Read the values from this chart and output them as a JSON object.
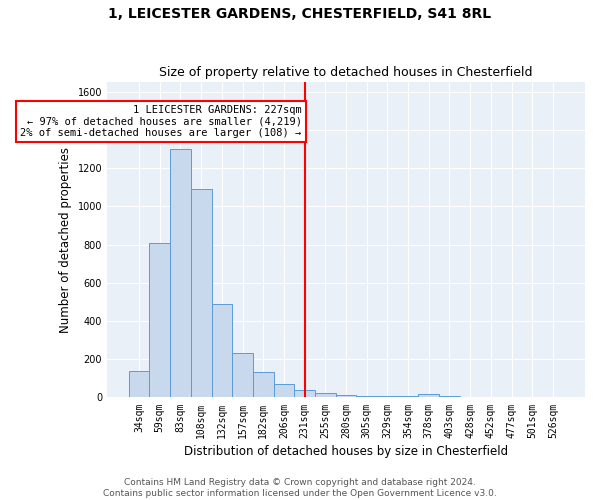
{
  "title": "1, LEICESTER GARDENS, CHESTERFIELD, S41 8RL",
  "subtitle": "Size of property relative to detached houses in Chesterfield",
  "xlabel": "Distribution of detached houses by size in Chesterfield",
  "ylabel": "Number of detached properties",
  "bar_color": "#c8d9ed",
  "bar_edge_color": "#5b9bd5",
  "background_color": "#eaf0f8",
  "grid_color": "white",
  "categories": [
    "34sqm",
    "59sqm",
    "83sqm",
    "108sqm",
    "132sqm",
    "157sqm",
    "182sqm",
    "206sqm",
    "231sqm",
    "255sqm",
    "280sqm",
    "305sqm",
    "329sqm",
    "354sqm",
    "378sqm",
    "403sqm",
    "428sqm",
    "452sqm",
    "477sqm",
    "501sqm",
    "526sqm"
  ],
  "values": [
    140,
    810,
    1300,
    1090,
    490,
    235,
    133,
    72,
    38,
    22,
    13,
    10,
    9,
    8,
    20,
    5,
    4,
    0,
    0,
    0,
    0
  ],
  "vline_bin_index": 8,
  "annotation_line1": "1 LEICESTER GARDENS: 227sqm",
  "annotation_line2": "← 97% of detached houses are smaller (4,219)",
  "annotation_line3": "2% of semi-detached houses are larger (108) →",
  "annotation_box_color": "white",
  "annotation_border_color": "red",
  "vline_color": "red",
  "ylim": [
    0,
    1650
  ],
  "yticks": [
    0,
    200,
    400,
    600,
    800,
    1000,
    1200,
    1400,
    1600
  ],
  "footer_line1": "Contains HM Land Registry data © Crown copyright and database right 2024.",
  "footer_line2": "Contains public sector information licensed under the Open Government Licence v3.0.",
  "title_fontsize": 10,
  "subtitle_fontsize": 9,
  "xlabel_fontsize": 8.5,
  "ylabel_fontsize": 8.5,
  "tick_fontsize": 7,
  "annotation_fontsize": 7.5,
  "footer_fontsize": 6.5
}
